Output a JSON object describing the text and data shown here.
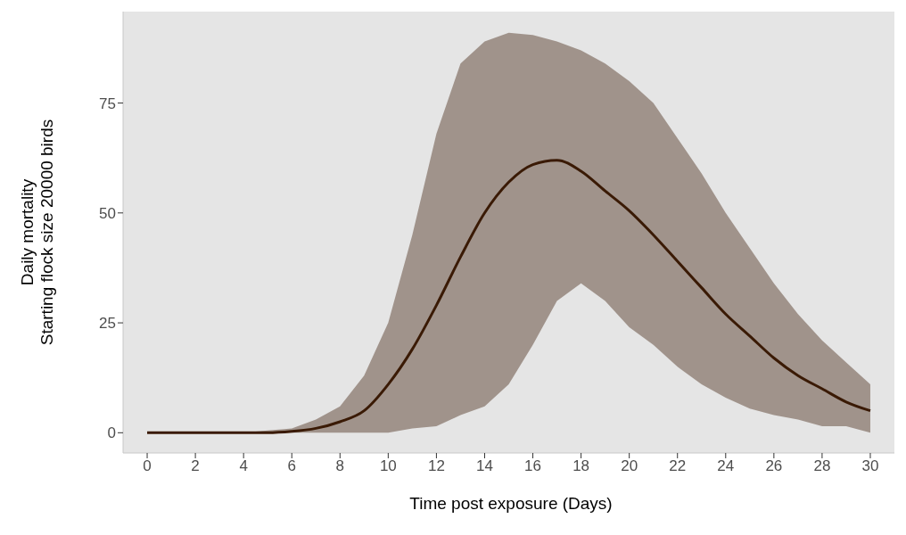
{
  "chart_data": {
    "type": "line",
    "xlabel": "Time post exposure (Days)",
    "ylabel": "Daily mortality\nStarting flock size 20000 birds",
    "x": [
      0,
      1,
      2,
      3,
      4,
      5,
      6,
      7,
      8,
      9,
      10,
      11,
      12,
      13,
      14,
      15,
      16,
      17,
      18,
      19,
      20,
      21,
      22,
      23,
      24,
      25,
      26,
      27,
      28,
      29,
      30
    ],
    "series": [
      {
        "color": "#3a1a05",
        "values": [
          0,
          0,
          0,
          0,
          0,
          0,
          0.3,
          1,
          2.5,
          5,
          11,
          19,
          29,
          40,
          50,
          57,
          61,
          62,
          59.5,
          55,
          50.5,
          45,
          39,
          33,
          27,
          22,
          17,
          13,
          10,
          7,
          5
        ],
        "lower": [
          0,
          0,
          0,
          0,
          0,
          0,
          0,
          0,
          0,
          0,
          0,
          1,
          1.5,
          4,
          6,
          11,
          20,
          30,
          34,
          30,
          24,
          20,
          15,
          11,
          8,
          5.5,
          4,
          3,
          1.5,
          1.5,
          0
        ],
        "upper": [
          0,
          0,
          0,
          0,
          0,
          0.5,
          1,
          3,
          6,
          13,
          25,
          45,
          68,
          84,
          89,
          91,
          90.5,
          89,
          87,
          84,
          80,
          75,
          67,
          59,
          50,
          42,
          34,
          27,
          21,
          16,
          11
        ]
      }
    ],
    "xlim": [
      -1,
      31
    ],
    "xticks": [
      0,
      2,
      4,
      6,
      8,
      10,
      12,
      14,
      16,
      18,
      20,
      22,
      24,
      26,
      28,
      30
    ],
    "ylim": [
      -4.6,
      95.8
    ],
    "yticks": [
      0,
      25,
      50,
      75
    ]
  }
}
